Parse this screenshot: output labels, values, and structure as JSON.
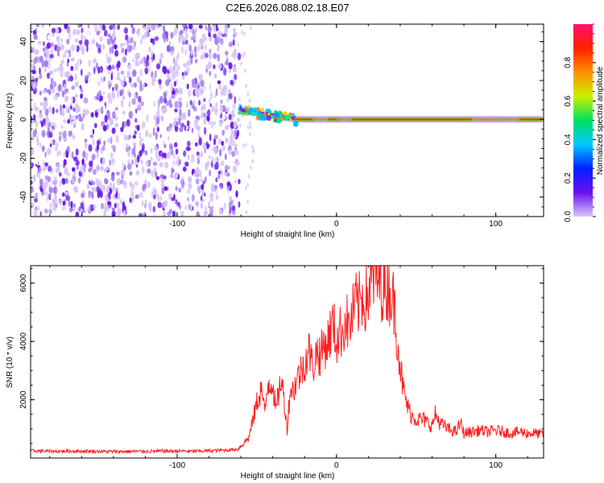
{
  "title": "C2E6.2026.088.02.18.E07",
  "colors": {
    "snr_line": "#ff2020",
    "frame": "#000000",
    "spec_light": "#d6c4f5",
    "spec_mid": "#a37ff0",
    "spec_dark": "#6a16f0"
  },
  "chart_data": [
    {
      "type": "heatmap",
      "xlabel": "Height of straight line (km)",
      "ylabel": "Frequency (Hz)",
      "xlim": [
        -192,
        130
      ],
      "ylim": [
        -50,
        49
      ],
      "xticks": [
        -100,
        0,
        100
      ],
      "xtick_labels": [
        "-100",
        "0",
        "100"
      ],
      "yticks": [
        -40,
        -20,
        0,
        20,
        40
      ],
      "ytick_labels": [
        "-40",
        "-20",
        "0",
        "20",
        "40"
      ],
      "noise_region_x": [
        -192,
        -61
      ],
      "signal_centerline": [
        {
          "x": -61,
          "y": 5
        },
        {
          "x": -55,
          "y": 4
        },
        {
          "x": -48,
          "y": 3
        },
        {
          "x": -40,
          "y": 2
        },
        {
          "x": -33,
          "y": 1
        },
        {
          "x": -26,
          "y": 0
        },
        {
          "x": 0,
          "y": 0
        },
        {
          "x": 50,
          "y": 0
        },
        {
          "x": 100,
          "y": 0
        },
        {
          "x": 130,
          "y": 0
        }
      ],
      "colorbar": {
        "label": "Normalized spectral amplitude",
        "range": [
          0,
          1
        ],
        "ticks": [
          0.0,
          0.2,
          0.4,
          0.6,
          0.8
        ],
        "tick_labels": [
          "0.0",
          "0.2",
          "0.4",
          "0.6",
          "0.8"
        ],
        "stops": [
          "#d8c8f8",
          "#6a10f0",
          "#0020ff",
          "#00c8ff",
          "#00e060",
          "#c8f000",
          "#ff9000",
          "#ff2000",
          "#ff1070"
        ]
      }
    },
    {
      "type": "line",
      "xlabel": "Height of straight line (km)",
      "ylabel": "SNR (10 * v/v)",
      "xlim": [
        -192,
        130
      ],
      "ylim": [
        0,
        6600
      ],
      "xticks": [
        -100,
        0,
        100
      ],
      "xtick_labels": [
        "-100",
        "0",
        "100"
      ],
      "yticks": [
        2000,
        4000,
        6000
      ],
      "ytick_labels": [
        "2000",
        "4000",
        "6000"
      ],
      "series": [
        {
          "x": [
            -192,
            -180,
            -160,
            -140,
            -120,
            -100,
            -90,
            -80,
            -70,
            -62,
            -55,
            -50,
            -47,
            -45,
            -43,
            -40,
            -38,
            -35,
            -33,
            -31,
            -29,
            -27,
            -25,
            -22,
            -20,
            -17,
            -15,
            -12,
            -10,
            -8,
            -6,
            -4,
            -2,
            0,
            2,
            4,
            6,
            8,
            10,
            12,
            14,
            16,
            18,
            20,
            22,
            24,
            26,
            28,
            30,
            32,
            34,
            36,
            38,
            40,
            42,
            45,
            48,
            50,
            55,
            60,
            62,
            65,
            70,
            75,
            78,
            80,
            85,
            90,
            95,
            100,
            105,
            110,
            115,
            120,
            125,
            130
          ],
          "y": [
            250,
            230,
            240,
            220,
            230,
            240,
            230,
            250,
            270,
            300,
            700,
            1900,
            2400,
            1500,
            2600,
            2600,
            1600,
            2700,
            2100,
            1000,
            2400,
            2300,
            2700,
            3000,
            3300,
            3700,
            3100,
            3700,
            3500,
            3900,
            3900,
            4300,
            4600,
            4000,
            4300,
            4400,
            4800,
            4400,
            4900,
            5300,
            5200,
            5600,
            5400,
            5700,
            6000,
            6300,
            6100,
            6000,
            5800,
            5900,
            5700,
            5300,
            4300,
            3200,
            2300,
            1700,
            1400,
            1350,
            1300,
            1100,
            1500,
            1200,
            1000,
            900,
            1200,
            850,
            900,
            950,
            900,
            950,
            900,
            850,
            900,
            850,
            850,
            800
          ]
        }
      ]
    }
  ]
}
